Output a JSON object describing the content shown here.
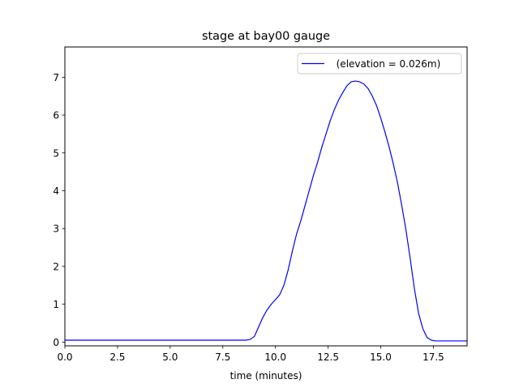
{
  "chart_data": {
    "type": "line",
    "title": "stage at bay00 gauge",
    "xlabel": "time (minutes)",
    "ylabel": "",
    "xlim": [
      0,
      19.1
    ],
    "ylim": [
      -0.1,
      7.8
    ],
    "xticks": [
      0.0,
      2.5,
      5.0,
      7.5,
      10.0,
      12.5,
      15.0,
      17.5
    ],
    "xtick_labels": [
      "0.0",
      "2.5",
      "5.0",
      "7.5",
      "10.0",
      "12.5",
      "15.0",
      "17.5"
    ],
    "yticks": [
      0,
      1,
      2,
      3,
      4,
      5,
      6,
      7
    ],
    "ytick_labels": [
      "0",
      "1",
      "2",
      "3",
      "4",
      "5",
      "6",
      "7"
    ],
    "grid": false,
    "legend_position": "top-right",
    "series": [
      {
        "name": "  (elevation = 0.026m)",
        "color": "#0000ff",
        "x": [
          0,
          2,
          4,
          6,
          8,
          8.6,
          8.8,
          9.0,
          9.2,
          9.4,
          9.6,
          9.8,
          10.0,
          10.2,
          10.4,
          10.6,
          10.8,
          11.0,
          11.2,
          11.4,
          11.6,
          11.8,
          12.0,
          12.2,
          12.4,
          12.6,
          12.8,
          13.0,
          13.2,
          13.4,
          13.6,
          13.8,
          14.0,
          14.2,
          14.4,
          14.6,
          14.8,
          15.0,
          15.2,
          15.4,
          15.6,
          15.8,
          16.0,
          16.2,
          16.4,
          16.6,
          16.8,
          17.0,
          17.2,
          17.4,
          17.6,
          17.8,
          18.0,
          18.5,
          19.1
        ],
        "y": [
          0.05,
          0.05,
          0.05,
          0.05,
          0.05,
          0.05,
          0.07,
          0.15,
          0.4,
          0.65,
          0.85,
          1.0,
          1.12,
          1.25,
          1.5,
          1.9,
          2.4,
          2.85,
          3.2,
          3.6,
          4.0,
          4.4,
          4.75,
          5.15,
          5.5,
          5.85,
          6.15,
          6.4,
          6.6,
          6.78,
          6.88,
          6.9,
          6.88,
          6.82,
          6.7,
          6.5,
          6.25,
          5.92,
          5.55,
          5.15,
          4.7,
          4.2,
          3.6,
          2.95,
          2.2,
          1.4,
          0.75,
          0.35,
          0.12,
          0.05,
          0.03,
          0.03,
          0.03,
          0.03,
          0.03
        ]
      }
    ]
  }
}
